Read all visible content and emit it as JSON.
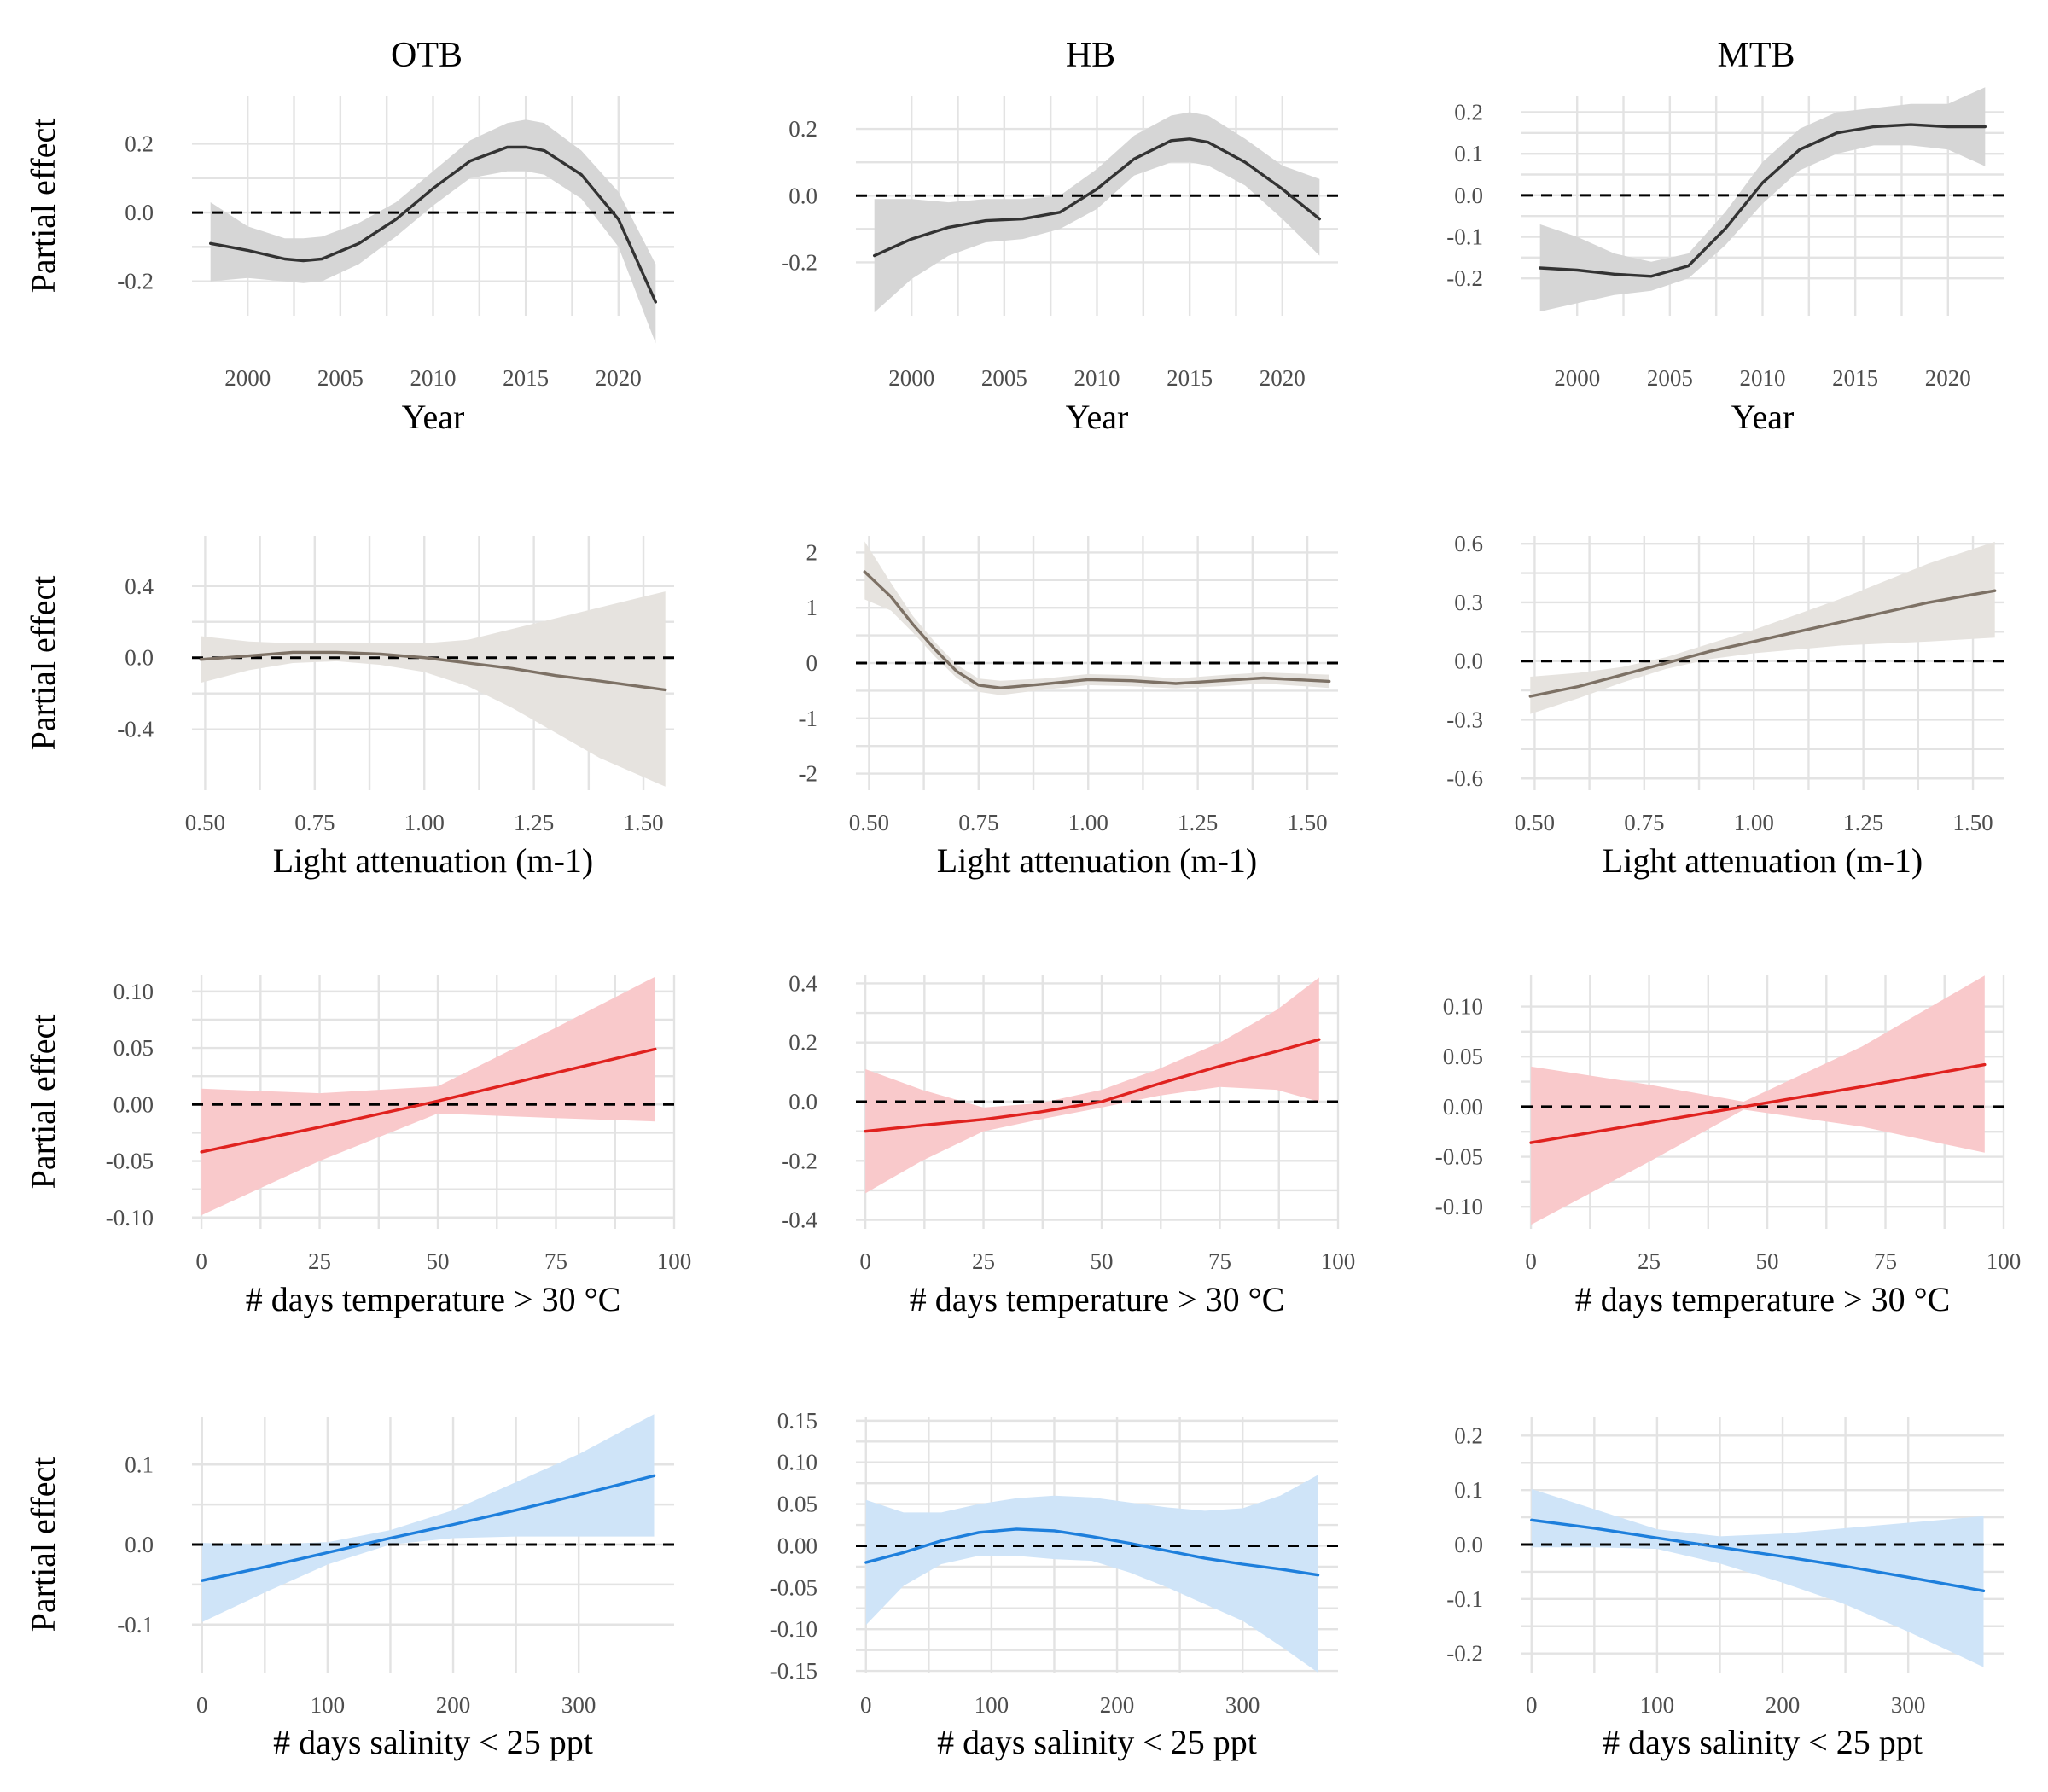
{
  "columns": [
    "OTB",
    "HB",
    "MTB"
  ],
  "ylabel": "Partial effect",
  "colors": {
    "year_line": "#333333",
    "year_band": "#d6d6d6",
    "light_line": "#7d7165",
    "light_band": "#e6e3df",
    "temp_line": "#e0221f",
    "temp_band": "#f9c9cb",
    "sal_line": "#1e7fdc",
    "sal_band": "#cfe4f8"
  },
  "chart_data": [
    {
      "type": "line",
      "row": 0,
      "col": 0,
      "site": "OTB",
      "xlabel": "Year",
      "ylabel": "Partial effect",
      "xlim": [
        1997,
        2023
      ],
      "ylim": [
        -0.3,
        0.34
      ],
      "xticks": [
        2000,
        2005,
        2010,
        2015,
        2020
      ],
      "xtick_labels": [
        "2000",
        "2005",
        "2010",
        "2015",
        "2020"
      ],
      "yticks": [
        -0.2,
        0,
        0.2
      ],
      "ytick_labels": [
        "-0.2",
        "0.0",
        "0.2"
      ],
      "color_key": "year",
      "x": [
        1998,
        2000,
        2002,
        2003,
        2004,
        2006,
        2008,
        2010,
        2012,
        2014,
        2015,
        2016,
        2018,
        2020,
        2022
      ],
      "y": [
        -0.09,
        -0.11,
        -0.135,
        -0.14,
        -0.135,
        -0.09,
        -0.02,
        0.07,
        0.15,
        0.19,
        0.19,
        0.18,
        0.11,
        -0.02,
        -0.26
      ],
      "lower": [
        -0.2,
        -0.19,
        -0.2,
        -0.205,
        -0.2,
        -0.15,
        -0.07,
        0.02,
        0.1,
        0.12,
        0.12,
        0.11,
        0.04,
        -0.1,
        -0.38
      ],
      "upper": [
        0.03,
        -0.04,
        -0.075,
        -0.075,
        -0.07,
        -0.03,
        0.03,
        0.12,
        0.21,
        0.26,
        0.27,
        0.26,
        0.18,
        0.06,
        -0.15
      ]
    },
    {
      "type": "line",
      "row": 0,
      "col": 1,
      "site": "HB",
      "xlabel": "Year",
      "ylabel": "",
      "xlim": [
        1997,
        2023
      ],
      "ylim": [
        -0.36,
        0.3
      ],
      "xticks": [
        2000,
        2005,
        2010,
        2015,
        2020
      ],
      "xtick_labels": [
        "2000",
        "2005",
        "2010",
        "2015",
        "2020"
      ],
      "yticks": [
        -0.2,
        0,
        0.2
      ],
      "ytick_labels": [
        "-0.2",
        "0.0",
        "0.2"
      ],
      "color_key": "year",
      "x": [
        1998,
        2000,
        2002,
        2004,
        2006,
        2008,
        2010,
        2012,
        2014,
        2015,
        2016,
        2018,
        2020,
        2022
      ],
      "y": [
        -0.18,
        -0.13,
        -0.095,
        -0.075,
        -0.07,
        -0.05,
        0.02,
        0.11,
        0.165,
        0.17,
        0.16,
        0.1,
        0.02,
        -0.07
      ],
      "lower": [
        -0.35,
        -0.25,
        -0.18,
        -0.14,
        -0.13,
        -0.1,
        -0.04,
        0.06,
        0.1,
        0.1,
        0.09,
        0.03,
        -0.07,
        -0.18
      ],
      "upper": [
        -0.01,
        -0.01,
        -0.02,
        -0.01,
        -0.01,
        0.0,
        0.08,
        0.18,
        0.24,
        0.25,
        0.24,
        0.17,
        0.09,
        0.05
      ]
    },
    {
      "type": "line",
      "row": 0,
      "col": 2,
      "site": "MTB",
      "xlabel": "Year",
      "ylabel": "",
      "xlim": [
        1997,
        2023
      ],
      "ylim": [
        -0.29,
        0.24
      ],
      "xticks": [
        2000,
        2005,
        2010,
        2015,
        2020
      ],
      "xtick_labels": [
        "2000",
        "2005",
        "2010",
        "2015",
        "2020"
      ],
      "yticks": [
        -0.2,
        -0.1,
        0,
        0.1,
        0.2
      ],
      "ytick_labels": [
        "-0.2",
        "-0.1",
        "0.0",
        "0.1",
        "0.2"
      ],
      "color_key": "year",
      "x": [
        1998,
        2000,
        2002,
        2004,
        2006,
        2008,
        2010,
        2012,
        2014,
        2016,
        2018,
        2020,
        2022
      ],
      "y": [
        -0.175,
        -0.18,
        -0.19,
        -0.195,
        -0.17,
        -0.08,
        0.03,
        0.11,
        0.15,
        0.165,
        0.17,
        0.165,
        0.165
      ],
      "lower": [
        -0.28,
        -0.26,
        -0.24,
        -0.23,
        -0.2,
        -0.12,
        -0.02,
        0.06,
        0.1,
        0.12,
        0.12,
        0.11,
        0.07
      ],
      "upper": [
        -0.07,
        -0.1,
        -0.14,
        -0.16,
        -0.14,
        -0.04,
        0.08,
        0.16,
        0.2,
        0.21,
        0.22,
        0.22,
        0.26
      ]
    },
    {
      "type": "line",
      "row": 1,
      "col": 0,
      "site": "OTB",
      "xlabel": "Light attenuation (m-1)",
      "ylabel": "Partial effect",
      "xlim": [
        0.47,
        1.57
      ],
      "ylim": [
        -0.74,
        0.68
      ],
      "xticks": [
        0.5,
        0.75,
        1.0,
        1.25,
        1.5
      ],
      "xtick_labels": [
        "0.50",
        "0.75",
        "1.00",
        "1.25",
        "1.50"
      ],
      "yticks": [
        -0.4,
        0,
        0.4
      ],
      "ytick_labels": [
        "-0.4",
        "0.0",
        "0.4"
      ],
      "color_key": "light",
      "x": [
        0.49,
        0.6,
        0.7,
        0.8,
        0.9,
        1.0,
        1.1,
        1.2,
        1.3,
        1.4,
        1.55
      ],
      "y": [
        -0.01,
        0.01,
        0.03,
        0.03,
        0.02,
        0.0,
        -0.03,
        -0.06,
        -0.1,
        -0.13,
        -0.18
      ],
      "lower": [
        -0.14,
        -0.07,
        -0.03,
        -0.02,
        -0.04,
        -0.08,
        -0.16,
        -0.28,
        -0.42,
        -0.56,
        -0.72
      ],
      "upper": [
        0.12,
        0.09,
        0.08,
        0.08,
        0.08,
        0.08,
        0.1,
        0.16,
        0.22,
        0.28,
        0.37
      ]
    },
    {
      "type": "line",
      "row": 1,
      "col": 1,
      "site": "HB",
      "xlabel": "Light attenuation (m-1)",
      "ylabel": "",
      "xlim": [
        0.47,
        1.57
      ],
      "ylim": [
        -2.3,
        2.3
      ],
      "xticks": [
        0.5,
        0.75,
        1.0,
        1.25,
        1.5
      ],
      "xtick_labels": [
        "0.50",
        "0.75",
        "1.00",
        "1.25",
        "1.50"
      ],
      "yticks": [
        -2,
        -1,
        0,
        1,
        2
      ],
      "ytick_labels": [
        "-2",
        "-1",
        "0",
        "1",
        "2"
      ],
      "color_key": "light",
      "x": [
        0.49,
        0.55,
        0.6,
        0.65,
        0.7,
        0.75,
        0.8,
        0.9,
        1.0,
        1.1,
        1.2,
        1.3,
        1.4,
        1.55
      ],
      "y": [
        1.65,
        1.2,
        0.7,
        0.25,
        -0.15,
        -0.4,
        -0.45,
        -0.38,
        -0.3,
        -0.32,
        -0.37,
        -0.32,
        -0.27,
        -0.33
      ],
      "lower": [
        1.15,
        0.95,
        0.55,
        0.12,
        -0.27,
        -0.52,
        -0.58,
        -0.48,
        -0.4,
        -0.42,
        -0.46,
        -0.42,
        -0.37,
        -0.45
      ],
      "upper": [
        2.2,
        1.45,
        0.85,
        0.38,
        -0.03,
        -0.28,
        -0.32,
        -0.28,
        -0.2,
        -0.22,
        -0.28,
        -0.22,
        -0.17,
        -0.21
      ]
    },
    {
      "type": "line",
      "row": 1,
      "col": 2,
      "site": "MTB",
      "xlabel": "Light attenuation (m-1)",
      "ylabel": "",
      "xlim": [
        0.47,
        1.57
      ],
      "ylim": [
        -0.66,
        0.64
      ],
      "xticks": [
        0.5,
        0.75,
        1.0,
        1.25,
        1.5
      ],
      "xtick_labels": [
        "0.50",
        "0.75",
        "1.00",
        "1.25",
        "1.50"
      ],
      "yticks": [
        -0.6,
        -0.3,
        0,
        0.3,
        0.6
      ],
      "ytick_labels": [
        "-0.6",
        "-0.3",
        "0.0",
        "0.3",
        "0.6"
      ],
      "color_key": "light",
      "x": [
        0.49,
        0.6,
        0.7,
        0.8,
        0.9,
        1.0,
        1.1,
        1.2,
        1.3,
        1.4,
        1.55
      ],
      "y": [
        -0.18,
        -0.13,
        -0.07,
        -0.01,
        0.05,
        0.1,
        0.15,
        0.2,
        0.25,
        0.3,
        0.36
      ],
      "lower": [
        -0.27,
        -0.19,
        -0.11,
        -0.04,
        0.01,
        0.04,
        0.06,
        0.08,
        0.09,
        0.1,
        0.12
      ],
      "upper": [
        -0.08,
        -0.06,
        -0.03,
        0.02,
        0.09,
        0.16,
        0.24,
        0.32,
        0.41,
        0.5,
        0.61
      ]
    },
    {
      "type": "line",
      "row": 2,
      "col": 0,
      "site": "OTB",
      "xlabel": "# days temperature > 30 °C",
      "ylabel": "Partial effect",
      "xlim": [
        -2,
        100
      ],
      "ylim": [
        -0.11,
        0.115
      ],
      "xticks": [
        0,
        25,
        50,
        75,
        100
      ],
      "xtick_labels": [
        "0",
        "25",
        "50",
        "75",
        "100"
      ],
      "yticks": [
        -0.1,
        -0.05,
        0,
        0.05,
        0.1
      ],
      "ytick_labels": [
        "-0.10",
        "-0.05",
        "0.00",
        "0.05",
        "0.10"
      ],
      "color_key": "temp",
      "x": [
        0,
        25,
        50,
        75,
        96
      ],
      "y": [
        -0.042,
        -0.02,
        0.003,
        0.028,
        0.049
      ],
      "lower": [
        -0.098,
        -0.05,
        -0.008,
        -0.012,
        -0.015
      ],
      "upper": [
        0.014,
        0.01,
        0.016,
        0.068,
        0.113
      ]
    },
    {
      "type": "line",
      "row": 2,
      "col": 1,
      "site": "HB",
      "xlabel": "# days temperature > 30 °C",
      "ylabel": "",
      "xlim": [
        -2,
        100
      ],
      "ylim": [
        -0.43,
        0.43
      ],
      "xticks": [
        0,
        25,
        50,
        75,
        100
      ],
      "xtick_labels": [
        "0",
        "25",
        "50",
        "75",
        "100"
      ],
      "yticks": [
        -0.4,
        -0.2,
        0,
        0.2,
        0.4
      ],
      "ytick_labels": [
        "-0.4",
        "-0.2",
        "0.0",
        "0.2",
        "0.4"
      ],
      "color_key": "temp",
      "x": [
        0,
        12,
        25,
        37,
        50,
        62,
        75,
        87,
        96
      ],
      "y": [
        -0.1,
        -0.08,
        -0.06,
        -0.035,
        0.0,
        0.06,
        0.12,
        0.17,
        0.21
      ],
      "lower": [
        -0.31,
        -0.2,
        -0.1,
        -0.06,
        -0.02,
        0.02,
        0.05,
        0.04,
        0.0
      ],
      "upper": [
        0.11,
        0.04,
        -0.02,
        -0.005,
        0.04,
        0.11,
        0.2,
        0.31,
        0.42
      ]
    },
    {
      "type": "line",
      "row": 2,
      "col": 2,
      "site": "MTB",
      "xlabel": "# days temperature > 30 °C",
      "ylabel": "",
      "xlim": [
        -2,
        100
      ],
      "ylim": [
        -0.122,
        0.132
      ],
      "xticks": [
        0,
        25,
        50,
        75,
        100
      ],
      "xtick_labels": [
        "0",
        "25",
        "50",
        "75",
        "100"
      ],
      "yticks": [
        -0.1,
        -0.05,
        0,
        0.05,
        0.1
      ],
      "ytick_labels": [
        "-0.10",
        "-0.05",
        "0.00",
        "0.05",
        "0.10"
      ],
      "color_key": "temp",
      "x": [
        0,
        25,
        45,
        70,
        96
      ],
      "y": [
        -0.036,
        -0.016,
        0.0,
        0.02,
        0.042
      ],
      "lower": [
        -0.118,
        -0.055,
        -0.003,
        -0.02,
        -0.046
      ],
      "upper": [
        0.04,
        0.022,
        0.005,
        0.06,
        0.131
      ]
    },
    {
      "type": "line",
      "row": 3,
      "col": 0,
      "site": "OTB",
      "xlabel": "# days salinity < 25 ppt",
      "ylabel": "Partial effect",
      "xlim": [
        -8,
        376
      ],
      "ylim": [
        -0.16,
        0.16
      ],
      "xticks": [
        0,
        100,
        200,
        300
      ],
      "xtick_labels": [
        "0",
        "100",
        "200",
        "300"
      ],
      "yticks": [
        -0.1,
        0,
        0.1
      ],
      "ytick_labels": [
        "-0.1",
        "0.0",
        "0.1"
      ],
      "color_key": "sal",
      "x": [
        0,
        50,
        100,
        150,
        200,
        250,
        300,
        360
      ],
      "y": [
        -0.045,
        -0.028,
        -0.01,
        0.008,
        0.025,
        0.043,
        0.062,
        0.086
      ],
      "lower": [
        -0.097,
        -0.06,
        -0.025,
        0.0,
        0.008,
        0.01,
        0.01,
        0.01
      ],
      "upper": [
        0.002,
        0.0,
        0.003,
        0.018,
        0.043,
        0.078,
        0.113,
        0.163
      ]
    },
    {
      "type": "line",
      "row": 3,
      "col": 1,
      "site": "HB",
      "xlabel": "# days salinity < 25 ppt",
      "ylabel": "",
      "xlim": [
        -8,
        376
      ],
      "ylim": [
        -0.152,
        0.155
      ],
      "xticks": [
        0,
        100,
        200,
        300
      ],
      "xtick_labels": [
        "0",
        "100",
        "200",
        "300"
      ],
      "yticks": [
        -0.15,
        -0.1,
        -0.05,
        0,
        0.05,
        0.1,
        0.15
      ],
      "ytick_labels": [
        "-0.15",
        "-0.10",
        "-0.05",
        "0.00",
        "0.05",
        "0.10",
        "0.15"
      ],
      "color_key": "sal",
      "x": [
        0,
        30,
        60,
        90,
        120,
        150,
        180,
        210,
        240,
        270,
        300,
        330,
        360
      ],
      "y": [
        -0.02,
        -0.008,
        0.006,
        0.016,
        0.02,
        0.018,
        0.011,
        0.003,
        -0.006,
        -0.015,
        -0.022,
        -0.028,
        -0.035
      ],
      "lower": [
        -0.095,
        -0.048,
        -0.022,
        -0.012,
        -0.012,
        -0.016,
        -0.018,
        -0.032,
        -0.05,
        -0.07,
        -0.09,
        -0.12,
        -0.152
      ],
      "upper": [
        0.055,
        0.04,
        0.04,
        0.05,
        0.057,
        0.06,
        0.058,
        0.052,
        0.046,
        0.042,
        0.045,
        0.06,
        0.085
      ]
    },
    {
      "type": "line",
      "row": 3,
      "col": 2,
      "site": "MTB",
      "xlabel": "# days salinity < 25 ppt",
      "ylabel": "",
      "xlim": [
        -8,
        376
      ],
      "ylim": [
        -0.235,
        0.235
      ],
      "xticks": [
        0,
        100,
        200,
        300
      ],
      "xtick_labels": [
        "0",
        "100",
        "200",
        "300"
      ],
      "yticks": [
        -0.2,
        -0.1,
        0,
        0.1,
        0.2
      ],
      "ytick_labels": [
        "-0.2",
        "-0.1",
        "0.0",
        "0.1",
        "0.2"
      ],
      "color_key": "sal",
      "x": [
        0,
        50,
        100,
        150,
        200,
        250,
        300,
        360
      ],
      "y": [
        0.045,
        0.03,
        0.012,
        -0.005,
        -0.022,
        -0.04,
        -0.06,
        -0.085
      ],
      "lower": [
        -0.005,
        -0.005,
        -0.008,
        -0.035,
        -0.07,
        -0.11,
        -0.16,
        -0.225
      ],
      "upper": [
        0.102,
        0.065,
        0.028,
        0.015,
        0.02,
        0.03,
        0.04,
        0.052
      ]
    }
  ]
}
